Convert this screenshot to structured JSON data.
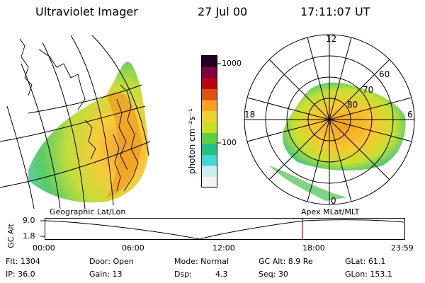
{
  "header": {
    "instrument": "Ultraviolet Imager",
    "date": "27 Jul 00",
    "time": "17:11:07 UT"
  },
  "colorbar": {
    "unit_label": "photon cm⁻²s⁻¹",
    "ticks": [
      "1000",
      "100"
    ],
    "colors": [
      "#f4f4f4",
      "#cdeef0",
      "#40d8d0",
      "#20c080",
      "#60d040",
      "#c8e020",
      "#f0d030",
      "#f8a020",
      "#e05010",
      "#c00010",
      "#800040",
      "#200020"
    ]
  },
  "polar": {
    "mlt_labels": {
      "top": "12",
      "left": "18",
      "right": "6",
      "bottom": "0"
    },
    "lat_labels": [
      "60",
      "70",
      "80"
    ]
  },
  "timeline": {
    "left_label": "Geographic Lat/Lon",
    "right_label": "Apex MLat/MLT",
    "y_axis_title": "GC Alt",
    "y_ticks": [
      "9.0",
      "1.8"
    ],
    "x_ticks": [
      "00:00",
      "06:00",
      "12:00",
      "18:00",
      "23:59"
    ],
    "current_time_hours": 17.19
  },
  "info": {
    "flt": "Flt: 1304",
    "ip": "IP: 36.0",
    "door": "Door: Open",
    "gain": "Gain: 13",
    "mode": "Mode: Normal",
    "dsp_label": "Dsp:",
    "dsp_value": "4.3",
    "gcalt": "GC Alt: 8.9 Re",
    "seq": "Seq: 30",
    "glat": "GLat: 61.1",
    "glon": "GLon: 153.1"
  }
}
